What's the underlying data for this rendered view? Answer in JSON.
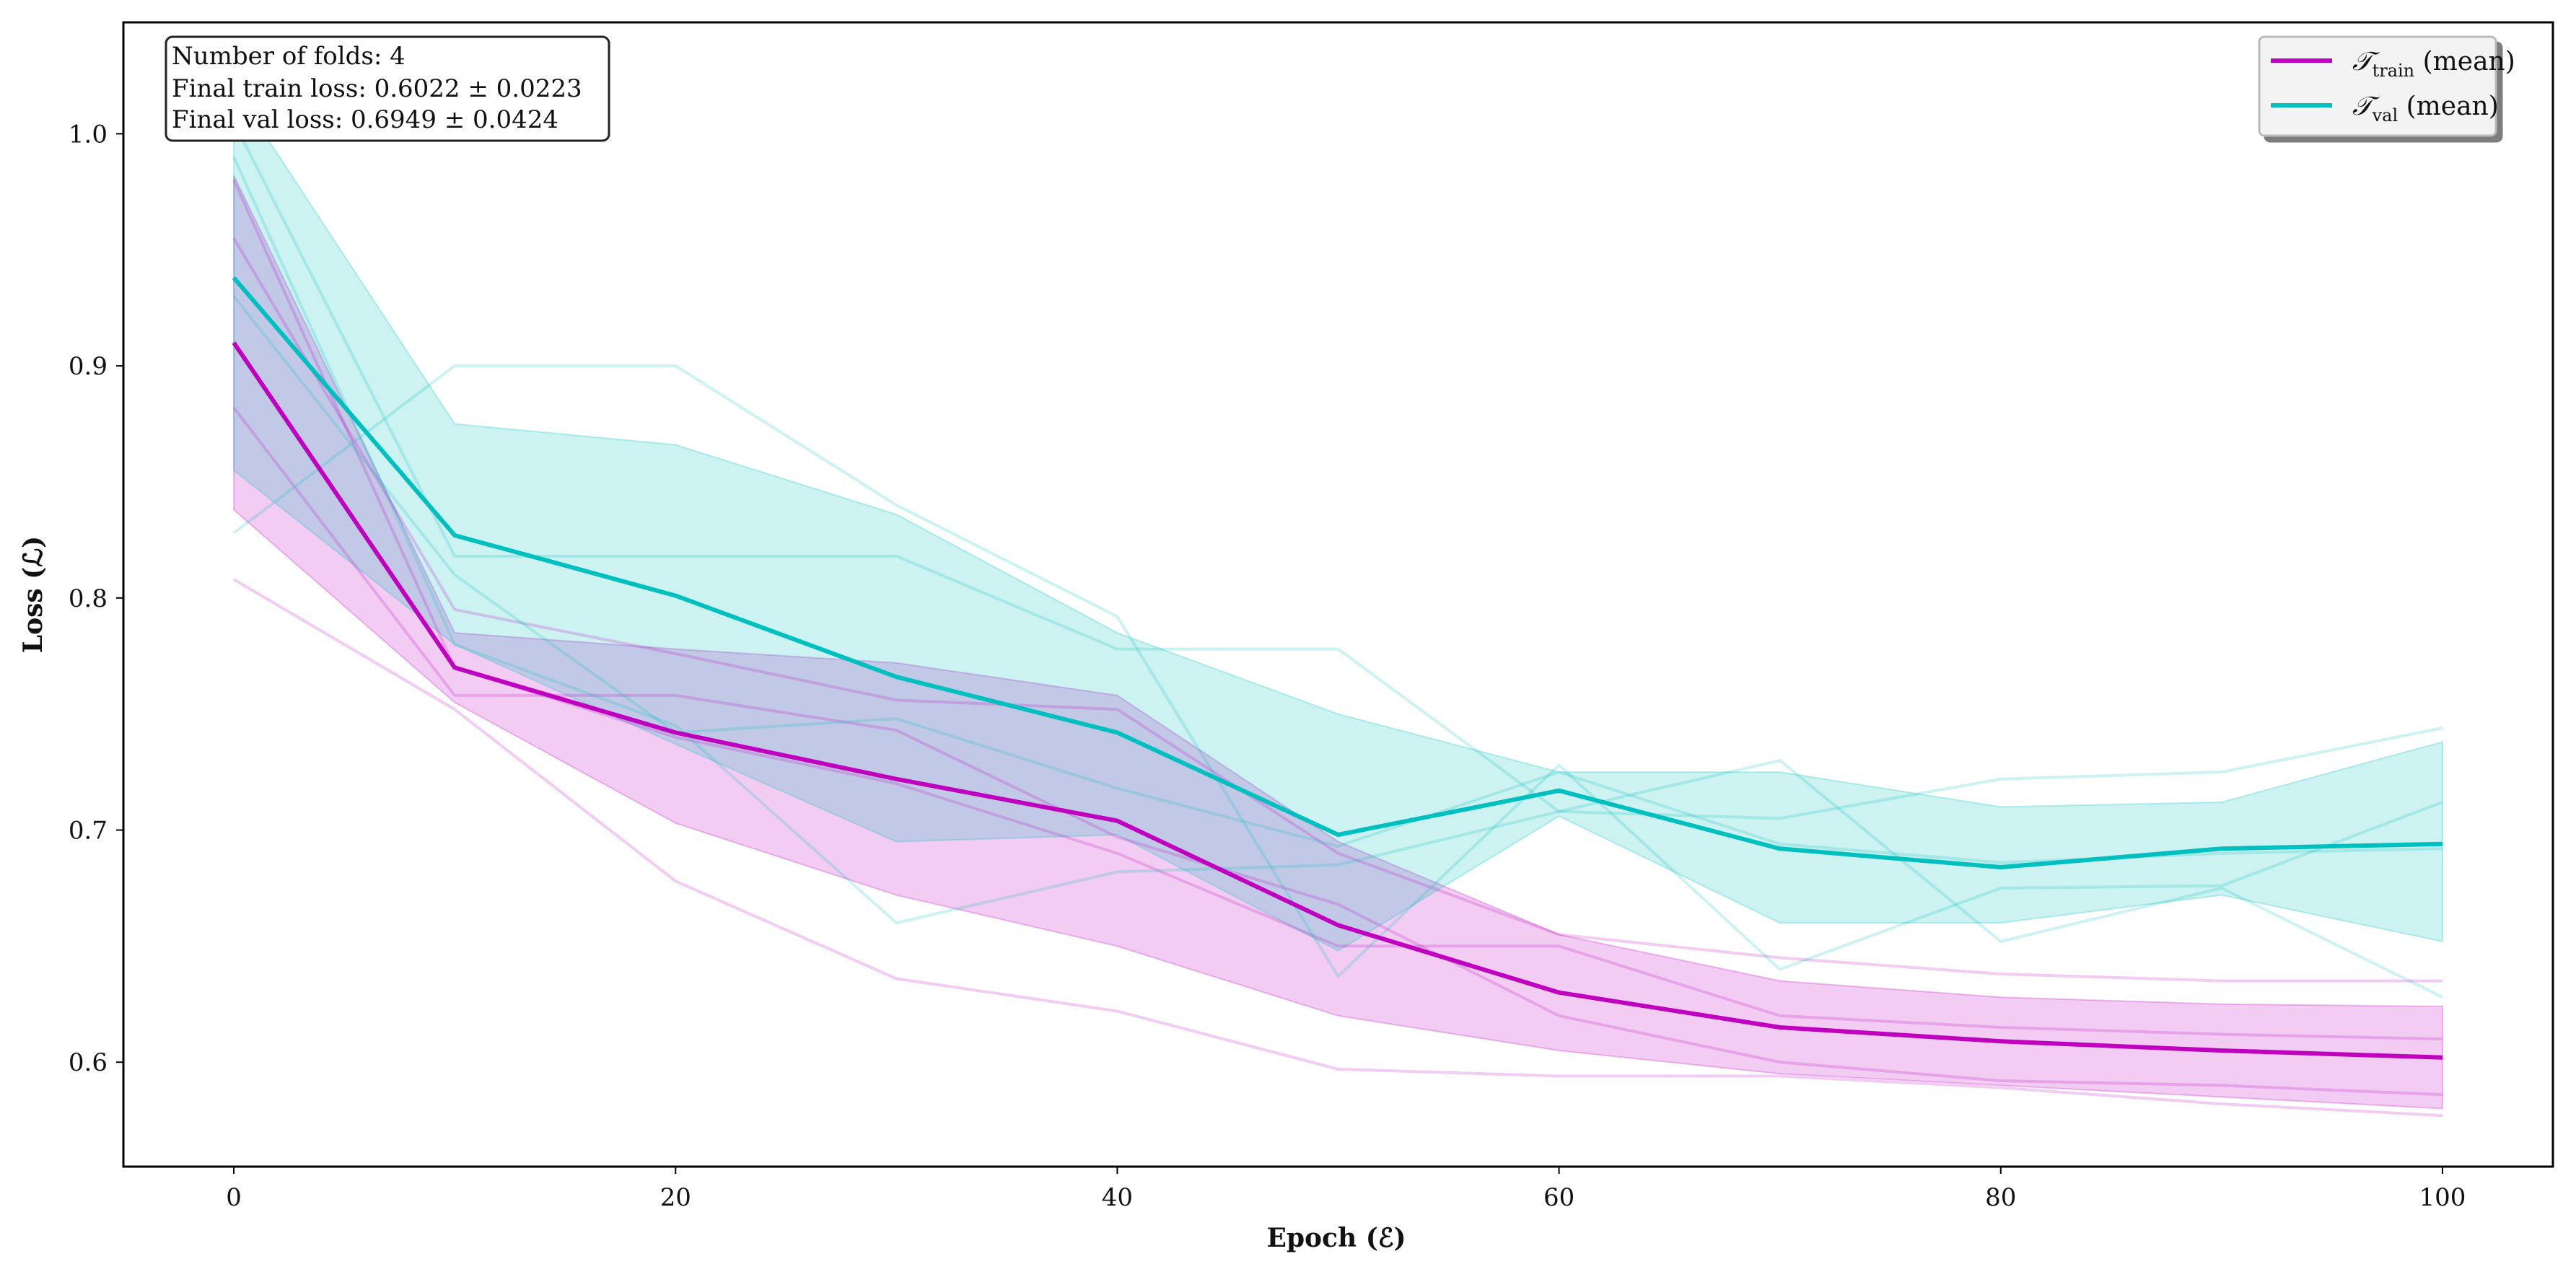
{
  "chart_data": {
    "type": "line",
    "xlabel": "Epoch (ℰ)",
    "ylabel": "Loss (ℒ)",
    "xlim": [
      -5,
      105
    ],
    "ylim": [
      0.555,
      1.048
    ],
    "xticks": [
      0,
      20,
      40,
      60,
      80,
      100
    ],
    "yticks": [
      0.6,
      0.7,
      0.8,
      0.9,
      1.0
    ],
    "x": [
      0,
      10,
      20,
      30,
      40,
      50,
      60,
      70,
      80,
      90,
      100
    ],
    "info_box": {
      "lines": [
        "Number of folds: 4",
        "Final train loss: 0.6022 ± 0.0223",
        "Final val loss: 0.6949 ± 0.0424"
      ]
    },
    "legend": {
      "placement": "top-right",
      "entries": [
        {
          "script": "𝒯",
          "subscript": "train",
          "suffix": "(mean)",
          "color": "#BF00BF"
        },
        {
          "script": "𝒯",
          "subscript": "val",
          "suffix": "(mean)",
          "color": "#00BFBF"
        }
      ]
    },
    "colors": {
      "train": "#BF00BF",
      "val": "#00BFBF"
    },
    "train_mean": [
      0.91,
      0.77,
      0.742,
      0.722,
      0.704,
      0.659,
      0.63,
      0.615,
      0.609,
      0.605,
      0.602
    ],
    "train_band_upper": [
      0.982,
      0.785,
      0.778,
      0.772,
      0.758,
      0.695,
      0.655,
      0.635,
      0.628,
      0.625,
      0.624
    ],
    "train_band_lower": [
      0.838,
      0.755,
      0.703,
      0.672,
      0.65,
      0.62,
      0.605,
      0.595,
      0.59,
      0.585,
      0.58
    ],
    "val_mean": [
      0.938,
      0.827,
      0.801,
      0.766,
      0.742,
      0.698,
      0.717,
      0.692,
      0.684,
      0.692,
      0.694
    ],
    "val_band_upper": [
      1.02,
      0.875,
      0.866,
      0.836,
      0.785,
      0.75,
      0.725,
      0.725,
      0.71,
      0.712,
      0.738
    ],
    "val_band_lower": [
      0.855,
      0.78,
      0.737,
      0.695,
      0.698,
      0.648,
      0.706,
      0.66,
      0.66,
      0.672,
      0.652
    ],
    "train_folds": [
      {
        "values": [
          0.955,
          0.795,
          0.776,
          0.756,
          0.752,
          0.69,
          0.655,
          0.645,
          0.638,
          0.635,
          0.635
        ]
      },
      {
        "values": [
          0.882,
          0.758,
          0.758,
          0.743,
          0.697,
          0.668,
          0.62,
          0.6,
          0.592,
          0.59,
          0.586
        ]
      },
      {
        "values": [
          0.98,
          0.77,
          0.74,
          0.72,
          0.69,
          0.65,
          0.65,
          0.62,
          0.615,
          0.612,
          0.61
        ]
      },
      {
        "values": [
          0.808,
          0.752,
          0.678,
          0.636,
          0.622,
          0.597,
          0.594,
          0.594,
          0.589,
          0.582,
          0.577
        ]
      }
    ],
    "val_folds": [
      {
        "values": [
          1.005,
          0.818,
          0.818,
          0.818,
          0.778,
          0.778,
          0.708,
          0.73,
          0.652,
          0.675,
          0.628
        ]
      },
      {
        "values": [
          0.828,
          0.9,
          0.9,
          0.84,
          0.792,
          0.637,
          0.728,
          0.64,
          0.675,
          0.676,
          0.712
        ]
      },
      {
        "values": [
          0.99,
          0.78,
          0.745,
          0.66,
          0.682,
          0.685,
          0.708,
          0.705,
          0.722,
          0.725,
          0.744
        ]
      },
      {
        "values": [
          0.93,
          0.81,
          0.742,
          0.748,
          0.718,
          0.693,
          0.725,
          0.694,
          0.686,
          0.69,
          0.692
        ]
      }
    ]
  }
}
